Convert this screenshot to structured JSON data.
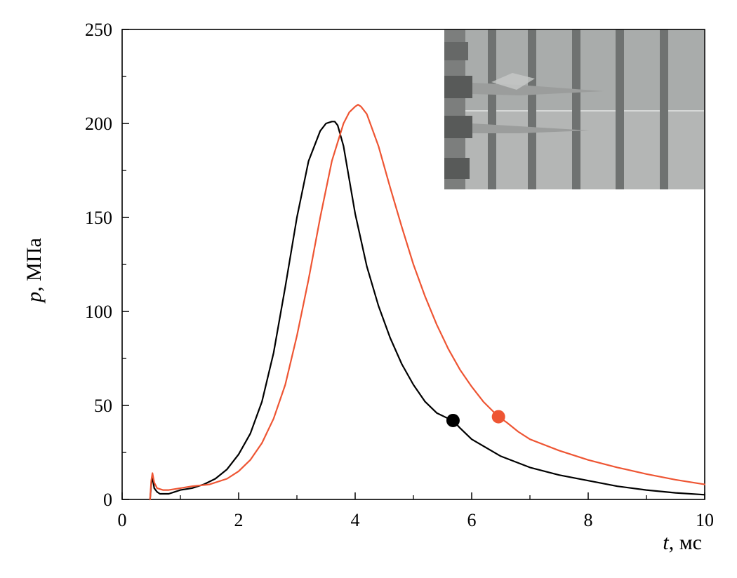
{
  "chart_data": {
    "type": "line",
    "title": "",
    "xlabel": {
      "symbol": "t",
      "unit": ", мс"
    },
    "ylabel": {
      "symbol": "p",
      "unit": ", МПа"
    },
    "xlim": [
      0,
      10
    ],
    "ylim": [
      0,
      250
    ],
    "x_ticks": [
      0,
      2,
      4,
      6,
      8,
      10
    ],
    "x_tick_labels": [
      "0",
      "2",
      "4",
      "6",
      "8",
      "10"
    ],
    "y_ticks": [
      0,
      50,
      100,
      150,
      200,
      250
    ],
    "y_tick_labels": [
      "0",
      "50",
      "100",
      "150",
      "200",
      "250"
    ],
    "grid": false,
    "legend": "none",
    "inset": "photo-top-right",
    "series": [
      {
        "color": "#000000",
        "x": [
          0.48,
          0.5,
          0.52,
          0.55,
          0.6,
          0.65,
          0.7,
          0.8,
          0.9,
          1.0,
          1.2,
          1.4,
          1.6,
          1.8,
          2.0,
          2.2,
          2.4,
          2.6,
          2.8,
          3.0,
          3.2,
          3.4,
          3.5,
          3.6,
          3.65,
          3.7,
          3.8,
          3.9,
          4.0,
          4.2,
          4.4,
          4.6,
          4.8,
          5.0,
          5.2,
          5.4,
          5.6,
          5.68,
          5.8,
          6.0,
          6.5,
          7.0,
          7.5,
          8.0,
          8.5,
          9.0,
          9.5,
          10.0
        ],
        "y": [
          0,
          8,
          12,
          6,
          4,
          3,
          3,
          3,
          4,
          5,
          6,
          8,
          11,
          16,
          24,
          35,
          52,
          78,
          113,
          150,
          180,
          196,
          200,
          201,
          201,
          199,
          188,
          170,
          152,
          124,
          103,
          86,
          72,
          61,
          52,
          46,
          43,
          42,
          38,
          32,
          23,
          17,
          13,
          10,
          7,
          5,
          3.5,
          2.5
        ],
        "marker": {
          "x": 5.68,
          "y": 42
        }
      },
      {
        "color": "#ee5533",
        "x": [
          0.48,
          0.5,
          0.52,
          0.55,
          0.6,
          0.7,
          0.8,
          1.0,
          1.2,
          1.5,
          1.8,
          2.0,
          2.2,
          2.4,
          2.6,
          2.8,
          3.0,
          3.2,
          3.4,
          3.6,
          3.8,
          3.9,
          4.0,
          4.05,
          4.1,
          4.2,
          4.4,
          4.6,
          4.8,
          5.0,
          5.2,
          5.4,
          5.6,
          5.8,
          6.0,
          6.2,
          6.46,
          6.6,
          6.8,
          7.0,
          7.5,
          8.0,
          8.5,
          9.0,
          9.5,
          10.0
        ],
        "y": [
          0,
          10,
          14,
          9,
          6,
          5,
          5,
          6,
          7,
          8,
          11,
          15,
          21,
          30,
          43,
          61,
          87,
          117,
          150,
          180,
          200,
          206,
          209,
          210,
          209,
          205,
          188,
          166,
          145,
          125,
          108,
          93,
          80,
          69,
          60,
          52,
          44,
          41,
          36,
          32,
          26,
          21,
          17,
          13.5,
          10.5,
          8
        ],
        "marker": {
          "x": 6.46,
          "y": 44
        }
      }
    ]
  }
}
